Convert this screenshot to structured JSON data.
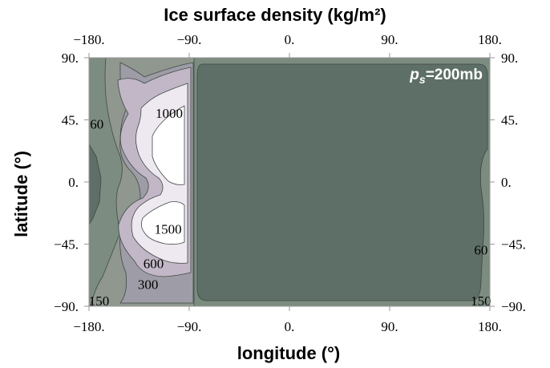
{
  "chart_data": {
    "type": "contour",
    "title": "Ice surface density (kg/m²)",
    "xlabel": "longitude (°)",
    "ylabel": "latitude (°)",
    "xlim": [
      -180,
      180
    ],
    "ylim": [
      -90,
      90
    ],
    "x_ticks": [
      -180,
      -90,
      0,
      90,
      180
    ],
    "x_tick_labels": [
      "−180.",
      "−90.",
      "0.",
      "90.",
      "180."
    ],
    "y_ticks": [
      90,
      45,
      0,
      -45,
      -90
    ],
    "y_tick_labels": [
      "90.",
      "45.",
      "0.",
      "−45.",
      "−90."
    ],
    "annotation": "ps=200mb",
    "contour_levels": [
      60,
      150,
      300,
      600,
      1000,
      1500
    ],
    "contour_labels": [
      {
        "text": "1000",
        "lon": -108,
        "lat": 50
      },
      {
        "text": "1500",
        "lon": -109,
        "lat": -34
      },
      {
        "text": "600",
        "lon": -122,
        "lat": -59
      },
      {
        "text": "300",
        "lon": -127,
        "lat": -74
      },
      {
        "text": "150",
        "lon": -171,
        "lat": -86
      },
      {
        "text": "60",
        "lon": -173,
        "lat": 42
      },
      {
        "text": "60",
        "lon": 172,
        "lat": -49
      },
      {
        "text": "150",
        "lon": 172,
        "lat": -86
      }
    ],
    "colors": {
      "background": "#7c8c80",
      "fill_low": "#5d6f66",
      "fill_mid": "#8f978f",
      "fill_300": "#9e9ca6",
      "fill_600": "#c2b7c6",
      "fill_1000": "#eee8f0",
      "fill_1500": "#ffffff",
      "frame": "#999999"
    },
    "grid": false
  }
}
